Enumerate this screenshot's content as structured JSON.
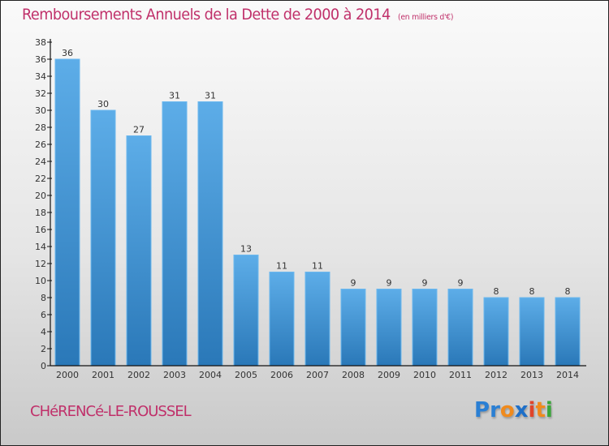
{
  "chart_data": {
    "type": "bar",
    "title": "Remboursements Annuels de la Dette de 2000 à 2014",
    "subtitle": "(en milliers d'€)",
    "xlabel": "",
    "ylabel": "",
    "categories": [
      "2000",
      "2001",
      "2002",
      "2003",
      "2004",
      "2005",
      "2006",
      "2007",
      "2008",
      "2009",
      "2010",
      "2011",
      "2012",
      "2013",
      "2014"
    ],
    "values": [
      36,
      30,
      27,
      31,
      31,
      13,
      11,
      11,
      9,
      9,
      9,
      9,
      8,
      8,
      8
    ],
    "ylim": [
      0,
      38
    ],
    "yticks": [
      0,
      2,
      4,
      6,
      8,
      10,
      12,
      14,
      16,
      18,
      20,
      22,
      24,
      26,
      28,
      30,
      32,
      34,
      36,
      38
    ],
    "grid": false,
    "legend": "none",
    "bar_color_top": "#5dade8",
    "bar_color_bottom": "#2a78b8"
  },
  "footer": {
    "commune": "CHéRENCé-LE-ROUSSEL",
    "logo_letters": [
      {
        "ch": "P",
        "color": "#2a7fd4"
      },
      {
        "ch": "r",
        "color": "#2a7fd4"
      },
      {
        "ch": "o",
        "color": "#f08a1c"
      },
      {
        "ch": "x",
        "color": "#1e6fc8"
      },
      {
        "ch": "i",
        "color": "#e0452a"
      },
      {
        "ch": "t",
        "color": "#f08a1c"
      },
      {
        "ch": "i",
        "color": "#3aa63a"
      }
    ]
  },
  "colors": {
    "title": "#c0306a",
    "axis": "#111111"
  }
}
